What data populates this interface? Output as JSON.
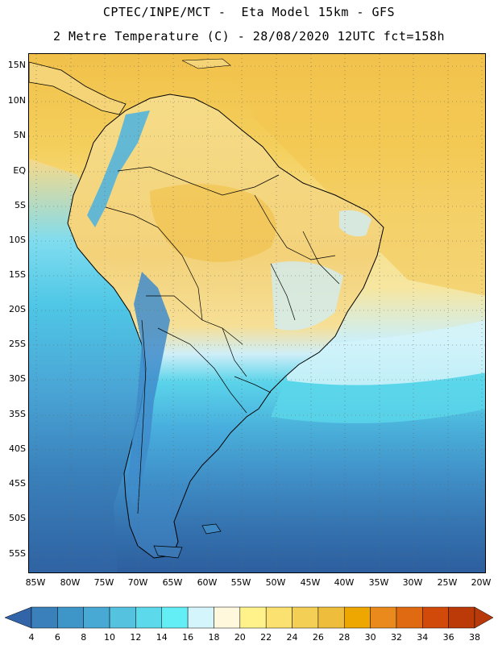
{
  "title": {
    "line1": "CPTEC/INPE/MCT -  Eta Model 15km - GFS",
    "line2": "2 Metre Temperature (C) - 28/08/2020 12UTC fct=158h"
  },
  "lat_labels": [
    "15N",
    "10N",
    "5N",
    "EQ",
    "5S",
    "10S",
    "15S",
    "20S",
    "25S",
    "30S",
    "35S",
    "40S",
    "45S",
    "50S",
    "55S"
  ],
  "lon_labels": [
    "85W",
    "80W",
    "75W",
    "70W",
    "65W",
    "60W",
    "55W",
    "50W",
    "45W",
    "40W",
    "35W",
    "30W",
    "25W",
    "20W"
  ],
  "legend": {
    "values": [
      "4",
      "6",
      "8",
      "10",
      "12",
      "14",
      "16",
      "18",
      "20",
      "22",
      "24",
      "26",
      "28",
      "30",
      "32",
      "34",
      "36",
      "38"
    ],
    "colors": [
      "#2e6aa6",
      "#3a81bb",
      "#3e95c8",
      "#48a9d4",
      "#55c2e0",
      "#5cd9ea",
      "#63eef5",
      "#d4f5fb",
      "#fff8dc",
      "#fff28a",
      "#fbe170",
      "#f4cf55",
      "#efbd3c",
      "#eea600",
      "#ea8a1c",
      "#e06a12",
      "#d14a0a",
      "#bb3a08"
    ],
    "under_color": "#3265a7",
    "over_color": "#b83a0a"
  },
  "map_colors": {
    "ocean_deep_south": "#2e5fa0",
    "ocean_south": "#3a7fbb",
    "ocean_mid": "#4aa6d6",
    "ocean_cyan": "#56d6ea",
    "ocean_pale": "#d4f5fb",
    "ocean_warm": "#f6e090",
    "ocean_north": "#f2c956",
    "land_warm": "#f4d782",
    "land_hot": "#efbb3c",
    "andes": "#45aee0",
    "patagonia": "#3d85c2",
    "borders": "#000000"
  }
}
